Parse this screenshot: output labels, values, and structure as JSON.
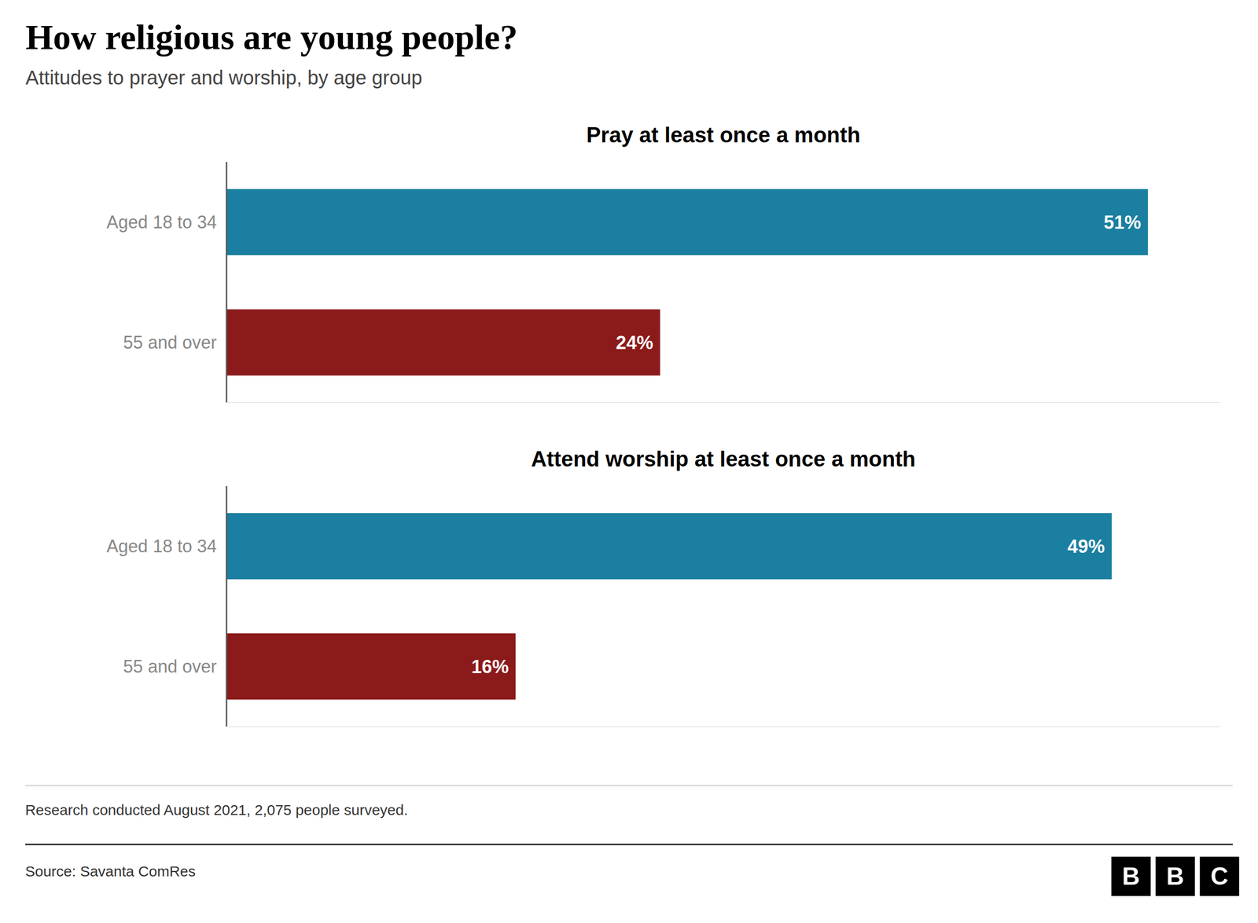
{
  "title": "How religious are young people?",
  "subtitle": "Attitudes to prayer and worship, by age group",
  "annotations": [
    "Research conducted August 2021, 2,075 people surveyed.",
    "Source: Savanta ComRes",
    "BBC"
  ],
  "chart_data": [
    {
      "type": "bar",
      "orientation": "horizontal",
      "title": "Pray at least once a month",
      "categories": [
        "Aged 18 to 34",
        "55 and over"
      ],
      "values": [
        51,
        24
      ],
      "value_labels": [
        "51%",
        "24%"
      ],
      "colors": [
        "#1a7fa0",
        "#8b1a1a"
      ],
      "xlim": [
        0,
        55
      ],
      "data_labels": true,
      "tick_labels": "y",
      "grid": false
    },
    {
      "type": "bar",
      "orientation": "horizontal",
      "title": "Attend worship at least once a month",
      "categories": [
        "Aged 18 to 34",
        "55 and over"
      ],
      "values": [
        49,
        16
      ],
      "value_labels": [
        "49%",
        "16%"
      ],
      "colors": [
        "#1a7fa0",
        "#8b1a1a"
      ],
      "xlim": [
        0,
        55
      ],
      "data_labels": true,
      "tick_labels": "y",
      "grid": false
    }
  ]
}
